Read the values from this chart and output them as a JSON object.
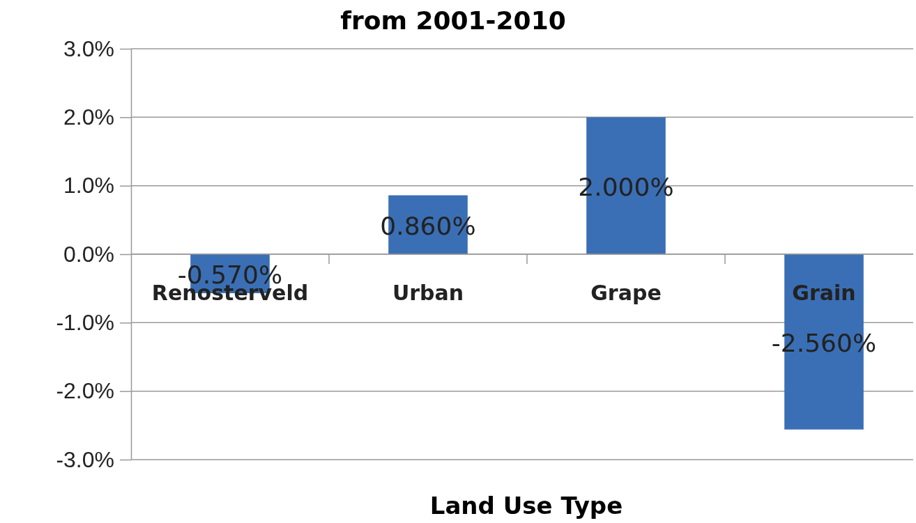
{
  "chart_data": {
    "type": "bar",
    "title": "from 2001-2010",
    "xlabel": "Land Use Type",
    "categories": [
      "Renosterveld",
      "Urban",
      "Grape",
      "Grain"
    ],
    "values": [
      -0.57,
      0.86,
      2.0,
      -2.56
    ],
    "value_labels": [
      "-0.570%",
      "0.860%",
      "2.000%",
      "-2.560%"
    ],
    "color": "#3a6fb5",
    "ylim": [
      -3,
      3
    ],
    "yticks": [
      {
        "value": -3,
        "label": "-3.0%"
      },
      {
        "value": -2,
        "label": "-2.0%"
      },
      {
        "value": -1,
        "label": "-1.0%"
      },
      {
        "value": 0,
        "label": "0.0%"
      },
      {
        "value": 1,
        "label": "1.0%"
      },
      {
        "value": 2,
        "label": "2.0%"
      },
      {
        "value": 3,
        "label": "3.0%"
      }
    ],
    "grid": "y"
  }
}
